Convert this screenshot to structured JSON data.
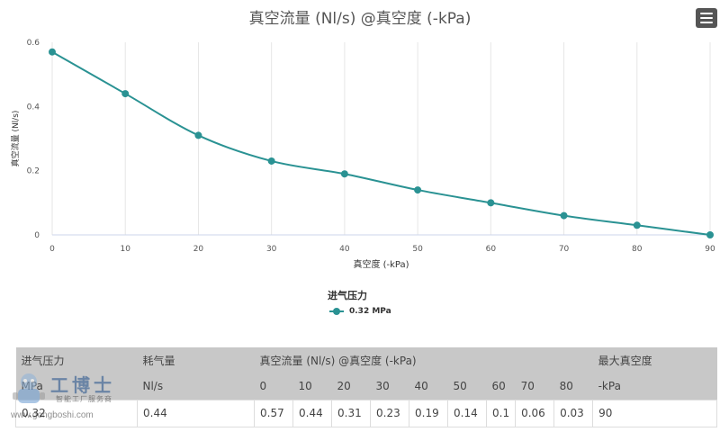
{
  "chart": {
    "title": "真空流量 (Nl/s) @真空度 (-kPa)"
  },
  "chart_data": {
    "type": "line",
    "title": "真空流量 (Nl/s) @真空度 (-kPa)",
    "xlabel": "真空度 (-kPa)",
    "ylabel": "真空流量 (Nl/s)",
    "x": [
      0,
      10,
      20,
      30,
      40,
      50,
      60,
      70,
      80,
      90
    ],
    "xlim": [
      0,
      90
    ],
    "ylim": [
      0,
      0.6
    ],
    "xticks": [
      "0",
      "10",
      "20",
      "30",
      "40",
      "50",
      "60",
      "70",
      "80",
      "90"
    ],
    "yticks": [
      "0",
      "0.2",
      "0.4",
      "0.6"
    ],
    "grid": "vertical",
    "legend_title": "进气压力",
    "legend_position": "bottom",
    "series": [
      {
        "name": "0.32 MPa",
        "color": "#2a9293",
        "values": [
          0.57,
          0.44,
          0.31,
          0.23,
          0.19,
          0.14,
          0.1,
          0.06,
          0.03,
          0
        ]
      }
    ]
  },
  "table": {
    "header1": {
      "pressure": "进气压力",
      "consumption": "耗气量",
      "flow": "真空流量 (Nl/s) @真空度 (-kPa)",
      "max_vacuum": "最大真空度"
    },
    "header2": {
      "pressure_unit": "MPa",
      "consumption_unit": "Nl/s",
      "vacuum_levels": [
        "0",
        "10",
        "20",
        "30",
        "40",
        "50",
        "60",
        "70",
        "80"
      ],
      "max_unit": "-kPa"
    },
    "row": {
      "pressure": "0.32",
      "consumption": "0.44",
      "flows": [
        "0.57",
        "0.44",
        "0.31",
        "0.23",
        "0.19",
        "0.14",
        "0.1",
        "0.06",
        "0.03"
      ],
      "max": "90"
    }
  },
  "watermark": {
    "brand": "工博士",
    "subtitle": "智能工厂服务商",
    "url": "www.gongboshi.com"
  }
}
